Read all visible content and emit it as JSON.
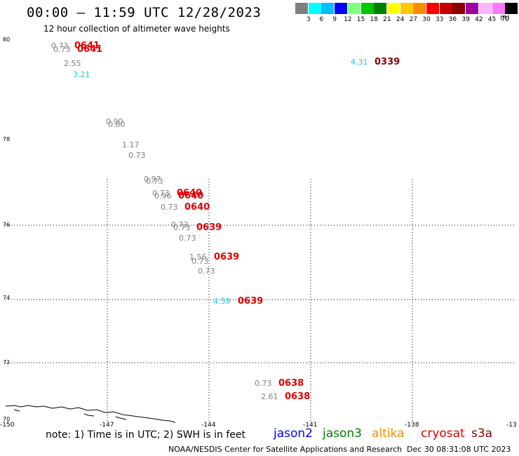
{
  "header": {
    "title": "00:00 – 11:59 UTC 12/28/2023",
    "subtitle": "12 hour collection of altimeter wave heights"
  },
  "scale": {
    "unit": "(ft)",
    "ticks": [
      "3",
      "6",
      "9",
      "12",
      "15",
      "18",
      "21",
      "24",
      "27",
      "30",
      "33",
      "36",
      "39",
      "42",
      "45",
      "70"
    ],
    "colors": [
      "#7f7f7f",
      "#00ffff",
      "#00bfff",
      "#0000ff",
      "#7fff7f",
      "#00c800",
      "#008000",
      "#ffff00",
      "#ffc800",
      "#ff8c00",
      "#ff0000",
      "#c80000",
      "#8b0000",
      "#a000a0",
      "#ffb4ff",
      "#ff78ff",
      "#000000"
    ]
  },
  "map": {
    "lat_labels": [
      "80",
      "78",
      "76",
      "74",
      "72",
      "70"
    ],
    "lon_labels": [
      "-150",
      "-147",
      "-144",
      "-141",
      "-138",
      "-13"
    ]
  },
  "tracks": [
    {
      "time": "0641",
      "color": "#e00000"
    },
    {
      "time": "0641",
      "color": "#e00000"
    },
    {
      "time": "0339",
      "color": "#8b0000"
    },
    {
      "time": "0640",
      "color": "#e00000"
    },
    {
      "time": "0640",
      "color": "#e00000"
    },
    {
      "time": "0640",
      "color": "#e00000"
    },
    {
      "time": "0639",
      "color": "#e00000"
    },
    {
      "time": "0639",
      "color": "#e00000"
    },
    {
      "time": "0639",
      "color": "#e00000"
    },
    {
      "time": "0638",
      "color": "#e00000"
    },
    {
      "time": "0638",
      "color": "#e00000"
    }
  ],
  "heights": [
    {
      "value": "0.73",
      "color": "#808080"
    },
    {
      "value": "0.73",
      "color": "#808080"
    },
    {
      "value": "2.55",
      "color": "#808080"
    },
    {
      "value": "3.21",
      "color": "#20c8d0"
    },
    {
      "value": "4.31",
      "color": "#20c8d0"
    },
    {
      "value": "0.90",
      "color": "#808080"
    },
    {
      "value": "0.80",
      "color": "#808080"
    },
    {
      "value": "1.17",
      "color": "#808080"
    },
    {
      "value": "0.73",
      "color": "#808080"
    },
    {
      "value": "0.97",
      "color": "#808080"
    },
    {
      "value": "0.73",
      "color": "#808080"
    },
    {
      "value": "0.73",
      "color": "#808080"
    },
    {
      "value": "0.96",
      "color": "#808080"
    },
    {
      "value": "0.73",
      "color": "#808080"
    },
    {
      "value": "0.73",
      "color": "#808080"
    },
    {
      "value": "0.73",
      "color": "#808080"
    },
    {
      "value": "0.73",
      "color": "#808080"
    },
    {
      "value": "1.56",
      "color": "#808080"
    },
    {
      "value": "0.73",
      "color": "#808080"
    },
    {
      "value": "0.73",
      "color": "#808080"
    },
    {
      "value": "4.59",
      "color": "#20c8d0"
    },
    {
      "value": "0.73",
      "color": "#808080"
    },
    {
      "value": "2.61",
      "color": "#808080"
    }
  ],
  "footer": {
    "note": "note:  1) Time is in UTC;  2) SWH is in feet",
    "missions": [
      {
        "name": "jason2",
        "color": "#0000ff"
      },
      {
        "name": "jason3",
        "color": "#008000"
      },
      {
        "name": "altika",
        "color": "#ff8c00"
      },
      {
        "name": "cryosat",
        "color": "#e00000"
      },
      {
        "name": "s3a",
        "color": "#8b0000"
      }
    ],
    "credit": "NOAA/NESDIS Center for Satellite Applications and Research",
    "timestamp": "Dec 30 08:31:08 UTC 2023"
  }
}
